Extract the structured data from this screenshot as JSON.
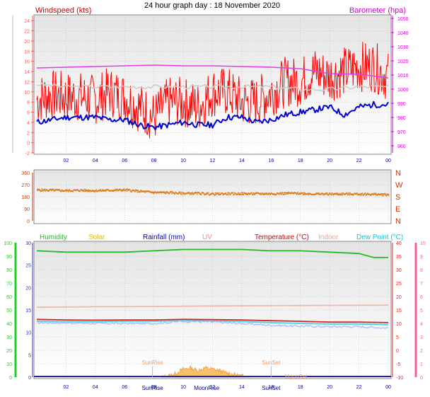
{
  "chart_title": "24 hour graph day : 18 November 2020",
  "chart_data": [
    {
      "type": "line",
      "title": "",
      "left_axis_label": "Windspeed (kts)",
      "right_axis_label": "Barometer (hpa)",
      "left_ylim": [
        -2,
        25
      ],
      "left_ticks": [
        "-2",
        "0",
        "2",
        "4",
        "6",
        "8",
        "10",
        "12",
        "14",
        "16",
        "18",
        "20",
        "22",
        "24"
      ],
      "right_ylim": [
        955,
        1052
      ],
      "right_ticks": [
        "960",
        "970",
        "980",
        "990",
        "1000",
        "1010",
        "1020",
        "1030",
        "1040",
        "1050"
      ],
      "x_ticks": [
        "02",
        "04",
        "06",
        "08",
        "10",
        "12",
        "14",
        "16",
        "18",
        "20",
        "22",
        "00"
      ],
      "x_range_hours": [
        0,
        24
      ],
      "series": [
        {
          "name": "",
          "axis": "left",
          "color": "#ff0000",
          "x": [
            0,
            1,
            2,
            3,
            4,
            5,
            6,
            7,
            8,
            9,
            10,
            11,
            12,
            13,
            14,
            15,
            16,
            17,
            18,
            19,
            20,
            21,
            22,
            23,
            24
          ],
          "values": [
            8.5,
            9.5,
            9,
            9,
            8.5,
            10,
            9,
            7,
            5,
            8,
            8,
            7,
            10,
            10,
            8,
            8,
            10,
            12,
            12,
            14,
            13,
            14,
            15,
            15,
            13
          ]
        },
        {
          "name": "",
          "axis": "left",
          "color": "#cccccc",
          "x": [
            0,
            2,
            4,
            6,
            8,
            10,
            12,
            14,
            16,
            18,
            20,
            22,
            24
          ],
          "values": [
            11.5,
            11,
            11,
            11,
            11,
            11,
            11,
            11,
            11,
            10.5,
            10.5,
            11,
            11
          ]
        },
        {
          "name": "",
          "axis": "left",
          "color": "#0000d0",
          "x": [
            0,
            1,
            2,
            3,
            4,
            5,
            6,
            7,
            8,
            9,
            10,
            11,
            12,
            13,
            14,
            15,
            16,
            17,
            18,
            19,
            20,
            21,
            22,
            23,
            24
          ],
          "values": [
            4,
            4.5,
            5,
            5,
            5,
            4.5,
            4.5,
            3.5,
            3,
            3.5,
            4,
            3.5,
            3.5,
            5,
            5,
            4,
            4.5,
            5.5,
            6,
            6.5,
            7,
            5.5,
            7,
            7.5,
            7.5
          ]
        },
        {
          "name": "",
          "axis": "right",
          "color": "#e040e0",
          "x": [
            0,
            2,
            4,
            6,
            8,
            10,
            12,
            14,
            16,
            18,
            20,
            22,
            24
          ],
          "values": [
            1015,
            1015.5,
            1016,
            1016.5,
            1017,
            1016.5,
            1016.5,
            1016,
            1015.5,
            1014.5,
            1011,
            1010.5,
            1008
          ]
        }
      ]
    },
    {
      "type": "scatter",
      "title": "",
      "left_ylim": [
        0,
        360
      ],
      "left_ticks": [
        "0",
        "90",
        "180",
        "270",
        "360"
      ],
      "right_ticks": [
        "N",
        "E",
        "S",
        "W",
        "N"
      ],
      "x_ticks": [],
      "series": [
        {
          "name": "",
          "color": "#dd7711",
          "x": [
            0,
            1,
            2,
            3,
            4,
            5,
            6,
            7,
            8,
            9,
            10,
            11,
            12,
            13,
            14,
            15,
            16,
            17,
            18,
            19,
            20,
            21,
            22,
            23,
            24
          ],
          "values": [
            230,
            228,
            225,
            228,
            225,
            228,
            230,
            220,
            212,
            210,
            205,
            205,
            200,
            202,
            202,
            202,
            202,
            205,
            205,
            200,
            200,
            200,
            200,
            198,
            195
          ]
        }
      ]
    },
    {
      "type": "line",
      "title": "",
      "legend": [
        "Humidity",
        "Solar",
        "Rainfall (mm)",
        "UV",
        "Temperature (°C)",
        "Indoor",
        "Dew Point (°C)"
      ],
      "legend_colors": [
        "#22bb22",
        "#e6b800",
        "#0000cc",
        "#ff8888",
        "#cc0000",
        "#e8a898",
        "#00c8e0"
      ],
      "left_axis_label": "",
      "left_ylim": [
        0,
        100
      ],
      "left_ticks": [
        "0",
        "10",
        "20",
        "30",
        "40",
        "50",
        "60",
        "70",
        "80",
        "90",
        "100"
      ],
      "rain_ticks": [
        "0",
        "5",
        "10",
        "15",
        "20",
        "25",
        "30"
      ],
      "right_ylim": [
        -10,
        40
      ],
      "right_ticks": [
        "-10",
        "-5",
        "0",
        "5",
        "10",
        "15",
        "20",
        "25",
        "30",
        "35",
        "40"
      ],
      "uv_ticks": [
        "0",
        "1",
        "2",
        "3",
        "4",
        "5",
        "6",
        "7",
        "8",
        "9",
        "10"
      ],
      "x_ticks": [
        "02",
        "04",
        "06",
        "08",
        "10",
        "12",
        "14",
        "16",
        "18",
        "20",
        "22",
        "00"
      ],
      "annotations": [
        "SunRise",
        "SunSet",
        "SunRise",
        "SunSet",
        "MoonRise",
        "MoonSet",
        "MoonSet"
      ],
      "series": [
        {
          "name": "Humidity",
          "axis": "left",
          "color": "#22bb22",
          "x": [
            0,
            2,
            4,
            6,
            8,
            10,
            12,
            14,
            16,
            18,
            20,
            22,
            23,
            24
          ],
          "values": [
            94,
            93,
            93,
            93,
            94,
            95,
            95,
            95,
            94,
            94,
            93,
            92,
            89,
            89
          ]
        },
        {
          "name": "Indoor",
          "axis": "temp",
          "color": "#f0b8a8",
          "x": [
            0,
            4,
            8,
            12,
            16,
            20,
            24
          ],
          "values": [
            16,
            16.2,
            16.3,
            16.5,
            16.6,
            16.7,
            16.8
          ]
        },
        {
          "name": "Temperature (°C)",
          "axis": "temp",
          "color": "#dd2222",
          "x": [
            0,
            2,
            4,
            6,
            8,
            10,
            12,
            14,
            16,
            18,
            20,
            22,
            24
          ],
          "values": [
            11.5,
            11.3,
            11.2,
            11.3,
            11.3,
            11.5,
            11.4,
            11.3,
            11,
            10.8,
            10.5,
            10.5,
            10.3
          ]
        },
        {
          "name": "Dew Point (°C)",
          "axis": "temp",
          "color": "#40d8e8",
          "x": [
            0,
            2,
            4,
            6,
            8,
            10,
            12,
            14,
            16,
            18,
            20,
            22,
            24
          ],
          "values": [
            10.8,
            10.6,
            10.6,
            10.8,
            10.8,
            11,
            10.9,
            10.7,
            10.3,
            10,
            9.8,
            9.8,
            9.5
          ]
        },
        {
          "name": "",
          "axis": "temp",
          "color": "#a8b8ff",
          "x": [
            0,
            2,
            4,
            6,
            8,
            10,
            12,
            14,
            16,
            18,
            20,
            22,
            24
          ],
          "values": [
            10.3,
            10.2,
            10,
            10,
            10,
            10.8,
            10.5,
            10,
            9.3,
            9,
            8.8,
            8.8,
            8.3
          ]
        },
        {
          "name": "Solar",
          "axis": "left",
          "color": "#f0a030",
          "x": [
            8.5,
            9,
            9.5,
            10,
            10.5,
            11,
            11.5,
            12,
            12.5,
            13,
            13.5,
            14,
            14.5
          ],
          "values": [
            0,
            1,
            3,
            6,
            7,
            5,
            7,
            6,
            5,
            3,
            2,
            1,
            0
          ]
        }
      ]
    }
  ],
  "colors": {
    "plot_bg_top": "#e8e8e8",
    "plot_bg_bottom": "#ffffff",
    "grid": "#b8b8b8",
    "wind_axis": "#ff5555",
    "baro_axis": "#cc00cc",
    "dir_axis": "#cc3300",
    "hum_axis": "#22cc22",
    "rain_axis": "#3333cc",
    "temp_axis": "#dd2222",
    "uv_axis": "#ff5c8a"
  }
}
